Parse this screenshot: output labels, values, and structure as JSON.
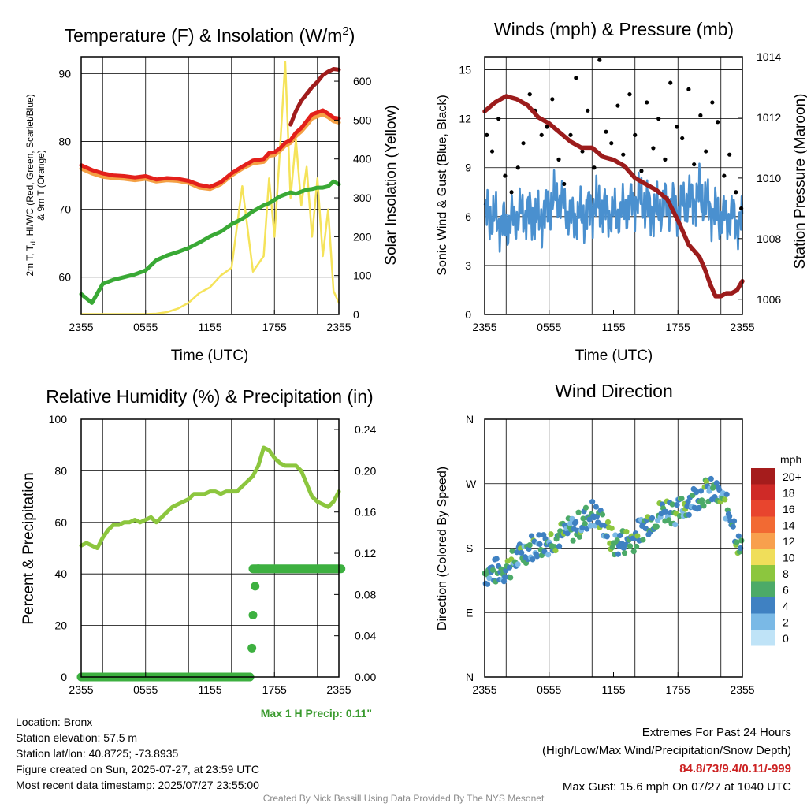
{
  "chart_data": [
    {
      "type": "line",
      "title": "Temperature (F) & Insolation (W/m²)",
      "xlabel": "Time (UTC)",
      "ylabel_left": "2m T, Td, HI/WC (Red, Green, Scarlet/Blue) & 9m T (Orange)",
      "ylabel_right": "Solar Insolation (Yellow)",
      "x_ticks": [
        "2355",
        "0555",
        "1155",
        "1755",
        "2355"
      ],
      "y_ticks_left": [
        60,
        70,
        80,
        90
      ],
      "y_ticks_right": [
        0,
        100,
        200,
        300,
        400,
        500,
        600
      ],
      "ylim_left": [
        54.5,
        92.5
      ],
      "ylim_right": [
        0,
        663
      ],
      "x_hours": [
        0,
        1,
        2,
        3,
        4,
        5,
        6,
        7,
        8,
        9,
        10,
        11,
        12,
        13,
        14,
        15,
        16,
        17,
        17.5,
        18,
        18.5,
        19,
        19.5,
        20,
        20.5,
        21,
        21.5,
        22,
        22.5,
        23,
        23.5,
        24
      ],
      "series": [
        {
          "name": "2m T",
          "color": "#e3201b",
          "values": [
            76.5,
            75.8,
            75.3,
            75.0,
            74.9,
            74.7,
            74.9,
            74.4,
            74.6,
            74.5,
            74.2,
            73.6,
            73.3,
            74.0,
            75.3,
            76.3,
            77.2,
            77.4,
            78.3,
            78.4,
            79.0,
            79.8,
            80.2,
            81.3,
            82.0,
            83.0,
            84.0,
            84.3,
            84.6,
            84.1,
            83.5,
            83.4
          ]
        },
        {
          "name": "HI/WC",
          "color": "#a01c1c",
          "values": [
            null,
            null,
            null,
            null,
            null,
            null,
            null,
            null,
            null,
            null,
            null,
            null,
            null,
            null,
            null,
            null,
            null,
            null,
            null,
            null,
            null,
            null,
            82.5,
            84.5,
            86.0,
            87.0,
            88.0,
            88.8,
            89.8,
            90.3,
            90.7,
            90.6
          ]
        },
        {
          "name": "9m T",
          "color": "#f4a044",
          "values": [
            76.0,
            75.3,
            74.8,
            74.6,
            74.5,
            74.3,
            74.5,
            74.1,
            74.3,
            74.2,
            73.9,
            73.2,
            73.0,
            73.7,
            75.0,
            76.0,
            76.8,
            77.0,
            77.9,
            78.0,
            78.6,
            79.4,
            79.8,
            80.8,
            81.5,
            82.4,
            83.4,
            83.7,
            84.0,
            83.6,
            83.0,
            82.8
          ]
        },
        {
          "name": "2m Td",
          "color": "#39a935",
          "values": [
            57.5,
            56.2,
            59.0,
            59.6,
            60.0,
            60.4,
            61.0,
            62.5,
            63.2,
            63.7,
            64.3,
            65.1,
            66.0,
            66.7,
            67.8,
            68.6,
            69.7,
            70.6,
            70.9,
            71.4,
            71.9,
            72.2,
            72.5,
            72.3,
            72.6,
            72.9,
            73.0,
            73.2,
            73.2,
            73.4,
            74.1,
            73.7
          ]
        },
        {
          "name": "Solar Insolation",
          "color": "#f5e35a",
          "axis": "right",
          "values": [
            1,
            1,
            1,
            1,
            1,
            1,
            1,
            2,
            6,
            15,
            30,
            55,
            70,
            100,
            120,
            330,
            110,
            150,
            350,
            200,
            420,
            650,
            300,
            450,
            280,
            380,
            200,
            350,
            150,
            270,
            60,
            30
          ]
        }
      ]
    },
    {
      "type": "scatter",
      "title": "Winds (mph) & Pressure (mb)",
      "xlabel": "Time (UTC)",
      "ylabel_left": "Sonic Wind & Gust (Blue, Black)",
      "ylabel_right": "Station Pressure (Maroon)",
      "x_ticks": [
        "2355",
        "0555",
        "1155",
        "1755",
        "2355"
      ],
      "y_ticks_left": [
        0,
        3,
        6,
        9,
        12,
        15
      ],
      "y_ticks_right": [
        1006,
        1008,
        1010,
        1012,
        1014
      ],
      "ylim_left": [
        0,
        15.8
      ],
      "ylim_right": [
        1005.5,
        1014
      ],
      "pressure": {
        "name": "Station Pressure",
        "color": "#9c1c1c",
        "hours": [
          0,
          1,
          2,
          3,
          4,
          5,
          6,
          7,
          8,
          9,
          10,
          11,
          12,
          13,
          14,
          15,
          16,
          17,
          18,
          19,
          20,
          20.5,
          21,
          21.5,
          22,
          22.5,
          23,
          23.5,
          24
        ],
        "values": [
          1012.2,
          1012.5,
          1012.7,
          1012.6,
          1012.4,
          1012.0,
          1011.8,
          1011.5,
          1011.2,
          1011.0,
          1011.0,
          1010.7,
          1010.6,
          1010.4,
          1010.0,
          1009.8,
          1009.6,
          1009.3,
          1008.6,
          1007.8,
          1007.4,
          1007.0,
          1006.5,
          1006.1,
          1006.1,
          1006.2,
          1006.2,
          1006.3,
          1006.6
        ]
      },
      "wind": {
        "name": "Sonic Wind",
        "color": "#4a90cf",
        "hours": [
          0,
          1,
          2,
          3,
          4,
          5,
          6,
          7,
          8,
          9,
          10,
          11,
          12,
          13,
          14,
          15,
          16,
          17,
          18,
          19,
          20,
          21,
          22,
          23,
          24
        ],
        "values": [
          6.2,
          5.8,
          5.5,
          6.0,
          6.3,
          5.6,
          6.8,
          7.2,
          6.0,
          5.9,
          6.6,
          6.5,
          6.1,
          6.4,
          7.0,
          6.8,
          6.2,
          6.9,
          6.4,
          7.0,
          7.3,
          6.6,
          5.8,
          6.0,
          5.5
        ]
      },
      "gust": {
        "name": "Gust",
        "color": "#000000",
        "hours": [
          0.2,
          0.7,
          1.3,
          1.9,
          2.5,
          3.1,
          3.6,
          4.2,
          4.7,
          5.3,
          5.8,
          6.3,
          6.9,
          7.4,
          8.0,
          8.5,
          9.1,
          9.6,
          10.2,
          10.7,
          11.3,
          11.8,
          12.4,
          12.9,
          13.5,
          14.0,
          14.6,
          15.1,
          15.7,
          16.2,
          16.8,
          17.3,
          17.9,
          18.4,
          19.0,
          19.5,
          20.1,
          20.6,
          21.2,
          21.7,
          22.3,
          22.8,
          23.4,
          23.9
        ],
        "values": [
          11.0,
          10.0,
          12.0,
          8.5,
          7.5,
          9.0,
          10.5,
          13.5,
          12.5,
          11.0,
          11.5,
          13.2,
          9.5,
          8.0,
          11.0,
          14.5,
          10.0,
          12.5,
          9.0,
          15.6,
          11.2,
          10.5,
          12.8,
          9.8,
          13.5,
          11.0,
          8.8,
          13.0,
          10.2,
          12.0,
          9.5,
          14.2,
          11.5,
          10.8,
          13.8,
          9.2,
          12.2,
          10.0,
          13.0,
          11.8,
          8.5,
          9.8,
          7.5,
          6.5
        ]
      }
    },
    {
      "type": "line",
      "title": "Relative Humidity (%) & Precipitation (in)",
      "ylabel": "Percent & Precipitation",
      "x_ticks": [
        "2355",
        "0555",
        "1155",
        "1755",
        "2355"
      ],
      "y_ticks_left": [
        0,
        20,
        40,
        60,
        80,
        100
      ],
      "y_ticks_right": [
        "0.00",
        "0.04",
        "0.08",
        "0.12",
        "0.16",
        "0.20",
        "0.24"
      ],
      "ylim_left": [
        0,
        100
      ],
      "ylim_right": [
        0,
        0.25
      ],
      "rh": {
        "name": "Relative Humidity",
        "color": "#8cc63e",
        "hours": [
          0,
          0.5,
          1,
          1.5,
          2,
          2.5,
          3,
          3.5,
          4,
          4.5,
          5,
          5.5,
          6,
          6.5,
          7,
          7.5,
          8,
          8.5,
          9,
          9.5,
          10,
          10.5,
          11,
          11.5,
          12,
          12.5,
          13,
          13.5,
          14,
          14.5,
          15,
          15.5,
          16,
          16.5,
          17,
          17.5,
          18,
          18.5,
          19,
          19.5,
          20,
          20.5,
          21,
          21.5,
          22,
          22.5,
          23,
          23.5,
          24
        ],
        "values": [
          51,
          52,
          51,
          50,
          54,
          57,
          59,
          59,
          60,
          60,
          61,
          60,
          61,
          62,
          60,
          62,
          64,
          66,
          67,
          68,
          69,
          71,
          71,
          71,
          72,
          72,
          71,
          72,
          72,
          72,
          74,
          76,
          78,
          82,
          89,
          88,
          85,
          83,
          82,
          82,
          82,
          80,
          75,
          70,
          68,
          67,
          66,
          68,
          72
        ]
      },
      "precip": {
        "name": "Precipitation",
        "color": "#3db040",
        "hours": [
          0,
          1,
          2,
          3,
          4,
          5,
          6,
          7,
          8,
          9,
          10,
          11,
          12,
          13,
          14,
          15,
          15.7,
          15.9,
          16.0,
          16.2,
          16.5,
          17,
          17.5,
          18,
          19,
          20,
          21,
          22,
          23,
          24
        ],
        "values": [
          0,
          0,
          0,
          0,
          0,
          0,
          0,
          0,
          0,
          0,
          0,
          0,
          0,
          0,
          0,
          0,
          0,
          0.028,
          0.06,
          0.088,
          0.105,
          0.105,
          0.105,
          0.105,
          0.105,
          0.105,
          0.105,
          0.105,
          0.105,
          0.105
        ]
      },
      "annotation": "Max 1 H Precip: 0.11\""
    },
    {
      "type": "scatter",
      "title": "Wind Direction",
      "ylabel": "Direction (Colored By Speed)",
      "x_ticks": [
        "2355",
        "0555",
        "1155",
        "1755",
        "2355"
      ],
      "y_ticks": [
        "N",
        "E",
        "S",
        "W",
        "N"
      ],
      "ylim": [
        0,
        360
      ],
      "colorbar": {
        "unit": "mph",
        "labels": [
          "20+",
          "18",
          "16",
          "14",
          "12",
          "10",
          "8",
          "6",
          "4",
          "2",
          "0"
        ],
        "colors": [
          "#a51c1c",
          "#cf2a27",
          "#e8452e",
          "#f26a33",
          "#f8a04d",
          "#f0de5a",
          "#8cc63e",
          "#4caa68",
          "#3f81c2",
          "#7ab9e6",
          "#bfe3f7"
        ]
      }
    }
  ],
  "station": {
    "location": "Location: Bronx",
    "elevation": "Station elevation: 57.5 m",
    "latlon": "Station lat/lon: 40.8725; -73.8935",
    "created": "Figure created on Sun, 2025-07-27, at 23:59 UTC",
    "recent": "Most recent data timestamp: 2025/07/27 23:55:00"
  },
  "extremes": {
    "title": "Extremes For Past 24 Hours",
    "subtitle": "(High/Low/Max Wind/Precipitation/Snow Depth)",
    "values": "84.8/73/9.4/0.11/-999",
    "gust": "Max Gust: 15.6 mph On 07/27 at 1040 UTC",
    "values_color": "#cc2222"
  },
  "credit": "Created By Nick Bassill Using Data Provided By The NYS Mesonet"
}
